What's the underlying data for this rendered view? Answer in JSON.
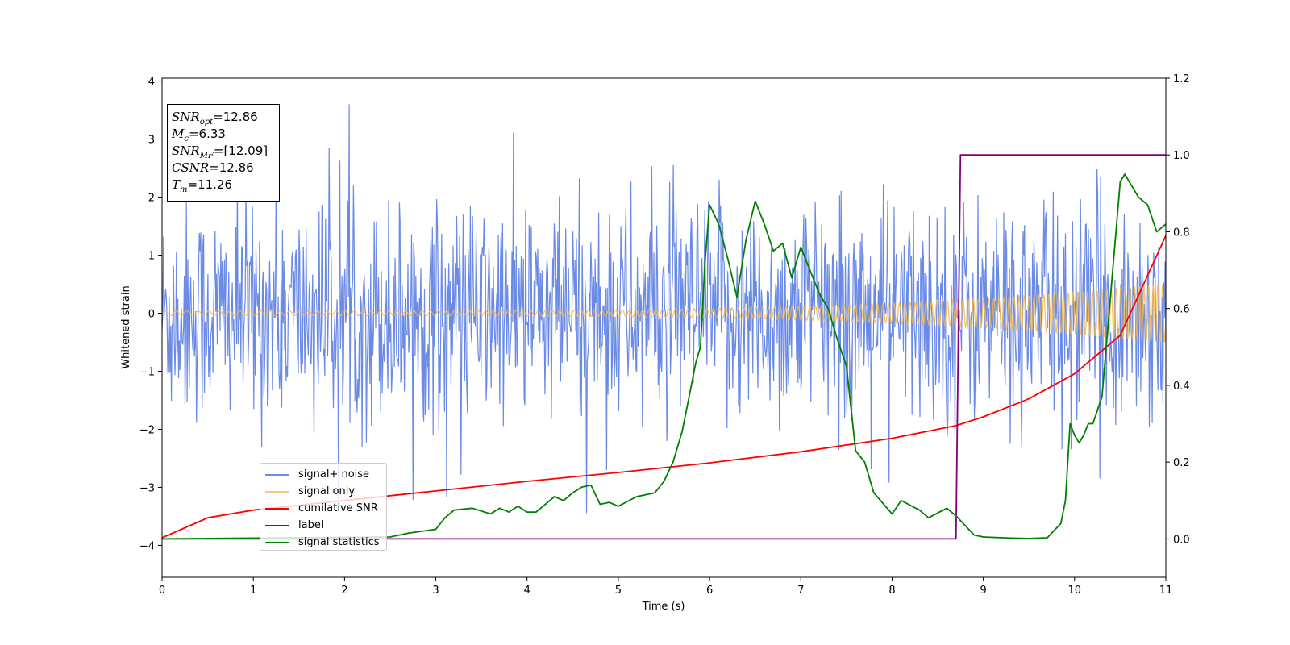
{
  "chart_data": {
    "type": "line",
    "xlabel": "Time (s)",
    "ylabel": "Whitened strain",
    "xlim": [
      0,
      11
    ],
    "ylim": [
      -4.55,
      4.05
    ],
    "y2lim": [
      -0.1,
      1.2
    ],
    "xticks": [
      "0",
      "1",
      "2",
      "3",
      "4",
      "5",
      "6",
      "7",
      "8",
      "9",
      "10",
      "11"
    ],
    "yticks": [
      "4",
      "3",
      "2",
      "1",
      "0",
      "−1",
      "−2",
      "−3",
      "−4"
    ],
    "y2ticks": [
      "1.2",
      "1.0",
      "0.8",
      "0.6",
      "0.4",
      "0.2",
      "0.0"
    ],
    "legend_position": "lower-left",
    "annotation": {
      "snr_opt_label": "SNR",
      "snr_opt_sub": "opt",
      "snr_opt_value": "=12.86",
      "mc_label": "M",
      "mc_sub": "c",
      "mc_value": "=6.33",
      "snr_mf_label": "SNR",
      "snr_mf_sub": "MF",
      "snr_mf_value": "=[12.09]",
      "csnr_label": "CSNR",
      "csnr_value": "=12.86",
      "tm_label": "T",
      "tm_sub": "m",
      "tm_value": "=11.26"
    },
    "series": [
      {
        "name": "signal+ noise",
        "color": "#6a8ae6",
        "axis": "left",
        "description_kind": "noise band",
        "envelope": {
          "mean": 0.0,
          "typical_low": -2.2,
          "typical_high": 2.2,
          "max": 3.6,
          "min": -4.2
        }
      },
      {
        "name": "signal only",
        "color": "#f5b84a",
        "axis": "left",
        "kind": "chirp",
        "amplitude_start": 0.04,
        "amplitude_end": 0.52
      },
      {
        "name": "cumilative SNR",
        "color": "#ff0000",
        "axis": "right",
        "x": [
          0,
          0.5,
          1,
          2,
          3,
          4,
          5,
          6,
          7,
          8,
          8.7,
          9,
          9.5,
          10,
          10.5,
          11
        ],
        "values": [
          0.003,
          0.055,
          0.075,
          0.1,
          0.125,
          0.15,
          0.173,
          0.198,
          0.227,
          0.262,
          0.295,
          0.318,
          0.365,
          0.43,
          0.53,
          0.79
        ]
      },
      {
        "name": "label",
        "color": "#800080",
        "axis": "right",
        "x": [
          0,
          8.7,
          8.75,
          11
        ],
        "values": [
          0.0,
          0.0,
          1.0,
          1.0
        ]
      },
      {
        "name": "signal statistics",
        "color": "#008000",
        "axis": "right",
        "x": [
          0,
          2.5,
          2.7,
          3.0,
          3.1,
          3.2,
          3.4,
          3.6,
          3.7,
          3.8,
          3.9,
          4.0,
          4.1,
          4.3,
          4.4,
          4.5,
          4.6,
          4.7,
          4.8,
          4.9,
          5.0,
          5.2,
          5.3,
          5.4,
          5.5,
          5.6,
          5.7,
          5.8,
          5.85,
          5.9,
          5.95,
          6.0,
          6.1,
          6.2,
          6.3,
          6.4,
          6.5,
          6.6,
          6.7,
          6.8,
          6.9,
          7.0,
          7.1,
          7.2,
          7.3,
          7.4,
          7.5,
          7.6,
          7.7,
          7.8,
          8.0,
          8.1,
          8.3,
          8.4,
          8.6,
          8.7,
          8.9,
          9.0,
          9.3,
          9.5,
          9.7,
          9.85,
          9.9,
          9.95,
          10.0,
          10.05,
          10.1,
          10.15,
          10.2,
          10.3,
          10.4,
          10.5,
          10.55,
          10.6,
          10.7,
          10.8,
          10.9,
          11.0
        ],
        "values": [
          0.0,
          0.005,
          0.015,
          0.025,
          0.055,
          0.075,
          0.08,
          0.065,
          0.08,
          0.07,
          0.085,
          0.07,
          0.07,
          0.11,
          0.1,
          0.12,
          0.135,
          0.14,
          0.09,
          0.095,
          0.085,
          0.11,
          0.115,
          0.12,
          0.15,
          0.2,
          0.28,
          0.4,
          0.46,
          0.5,
          0.72,
          0.87,
          0.82,
          0.73,
          0.63,
          0.78,
          0.88,
          0.82,
          0.75,
          0.77,
          0.68,
          0.76,
          0.7,
          0.64,
          0.6,
          0.52,
          0.45,
          0.23,
          0.2,
          0.12,
          0.065,
          0.1,
          0.075,
          0.055,
          0.08,
          0.06,
          0.01,
          0.005,
          0.002,
          0.001,
          0.003,
          0.04,
          0.1,
          0.3,
          0.27,
          0.25,
          0.27,
          0.3,
          0.3,
          0.37,
          0.65,
          0.93,
          0.95,
          0.93,
          0.89,
          0.87,
          0.8,
          0.82
        ]
      }
    ]
  }
}
